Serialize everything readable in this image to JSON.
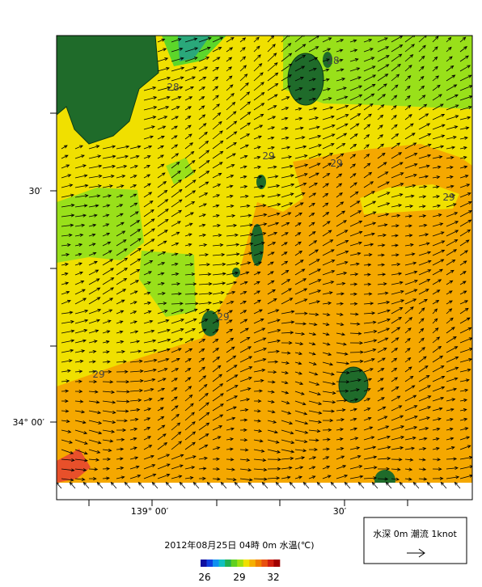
{
  "map": {
    "lat_labels": [
      "30′",
      "34° 00′"
    ],
    "lon_labels": [
      "139° 00′",
      "30′"
    ],
    "contour_labels": [
      "28",
      "28",
      "29",
      "29",
      "29",
      "29",
      "29"
    ],
    "caption": "2012年08月25日 04時 0m 水温(℃)",
    "colorbar_labels": [
      "26",
      "29",
      "32"
    ],
    "legend": "水深 0m 潮流 1knot"
  }
}
